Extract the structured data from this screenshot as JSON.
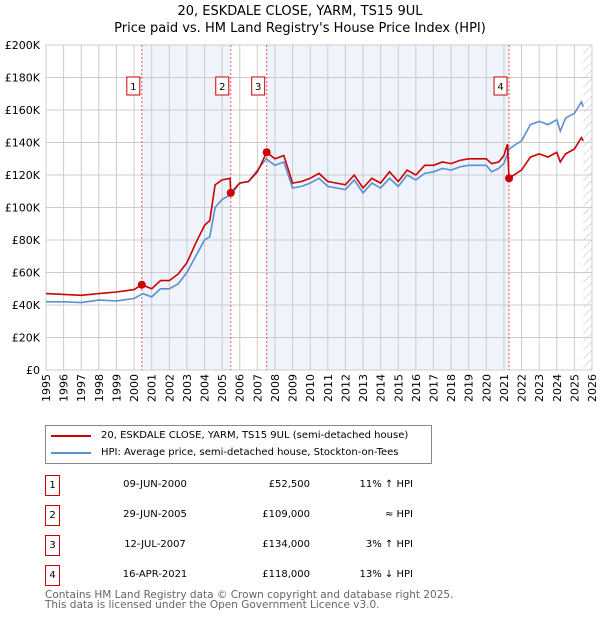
{
  "chart_data": {
    "type": "line",
    "title": "20, ESKDALE CLOSE, YARM, TS15 9UL",
    "subtitle": "Price paid vs. HM Land Registry's House Price Index (HPI)",
    "xlim": [
      1995,
      2026
    ],
    "ylim": [
      0,
      200000
    ],
    "x_ticks": [
      "1995",
      "1996",
      "1997",
      "1998",
      "1999",
      "2000",
      "2001",
      "2002",
      "2003",
      "2004",
      "2005",
      "2006",
      "2007",
      "2008",
      "2009",
      "2010",
      "2011",
      "2012",
      "2013",
      "2014",
      "2015",
      "2016",
      "2017",
      "2018",
      "2019",
      "2020",
      "2021",
      "2022",
      "2023",
      "2024",
      "2025",
      "2026"
    ],
    "y_ticks": [
      {
        "v": 0,
        "label": "£0"
      },
      {
        "v": 20000,
        "label": "£20K"
      },
      {
        "v": 40000,
        "label": "£40K"
      },
      {
        "v": 60000,
        "label": "£60K"
      },
      {
        "v": 80000,
        "label": "£80K"
      },
      {
        "v": 100000,
        "label": "£100K"
      },
      {
        "v": 120000,
        "label": "£120K"
      },
      {
        "v": 140000,
        "label": "£140K"
      },
      {
        "v": 160000,
        "label": "£160K"
      },
      {
        "v": 180000,
        "label": "£180K"
      },
      {
        "v": 200000,
        "label": "£200K"
      }
    ],
    "grid": true,
    "shaded_ranges": [
      [
        2000.44,
        2005.49
      ],
      [
        2007.53,
        2021.29
      ]
    ],
    "forecast_hatch_from": 2025.5,
    "series": [
      {
        "name": "20, ESKDALE CLOSE, YARM, TS15 9UL (semi-detached house)",
        "color": "#cc0000",
        "x": [
          1995,
          1996,
          1997,
          1998,
          1999,
          2000,
          2000.44,
          2001,
          2001.5,
          2002,
          2002.5,
          2003,
          2003.5,
          2004,
          2004.3,
          2004.6,
          2005,
          2005.45,
          2005.49,
          2006,
          2006.5,
          2007,
          2007.53,
          2008,
          2008.5,
          2009,
          2009.5,
          2010,
          2010.5,
          2011,
          2011.5,
          2012,
          2012.5,
          2013,
          2013.5,
          2014,
          2014.5,
          2015,
          2015.5,
          2016,
          2016.5,
          2017,
          2017.5,
          2018,
          2018.5,
          2019,
          2019.5,
          2020,
          2020.3,
          2020.7,
          2021,
          2021.2,
          2021.29,
          2021.7,
          2022,
          2022.5,
          2023,
          2023.5,
          2024,
          2024.2,
          2024.5,
          2025,
          2025.4,
          2025.5
        ],
        "y": [
          47000,
          46500,
          46000,
          47000,
          48000,
          49500,
          52500,
          50000,
          55000,
          55000,
          59000,
          66000,
          78000,
          89000,
          92000,
          114000,
          117000,
          118000,
          109000,
          115000,
          116000,
          122000,
          134000,
          130000,
          132000,
          115000,
          116000,
          118000,
          121000,
          116000,
          115000,
          114000,
          120000,
          112000,
          118000,
          115000,
          122000,
          116000,
          123000,
          120000,
          126000,
          126000,
          128000,
          127000,
          129000,
          130000,
          130000,
          130000,
          127000,
          128000,
          132000,
          139000,
          118000,
          121000,
          123000,
          131000,
          133000,
          131000,
          134000,
          128000,
          133000,
          136000,
          143000,
          141000
        ]
      },
      {
        "name": "HPI: Average price, semi-detached house, Stockton-on-Tees",
        "color": "#5b8fd0",
        "x": [
          1995,
          1996,
          1997,
          1998,
          1999,
          2000,
          2000.5,
          2001,
          2001.5,
          2002,
          2002.5,
          2003,
          2003.5,
          2004,
          2004.3,
          2004.6,
          2005,
          2005.5,
          2006,
          2006.5,
          2007,
          2007.5,
          2008,
          2008.5,
          2009,
          2009.5,
          2010,
          2010.5,
          2011,
          2011.5,
          2012,
          2012.5,
          2013,
          2013.5,
          2014,
          2014.5,
          2015,
          2015.5,
          2016,
          2016.5,
          2017,
          2017.5,
          2018,
          2018.5,
          2019,
          2019.5,
          2020,
          2020.3,
          2020.7,
          2021,
          2021.3,
          2021.7,
          2022,
          2022.5,
          2023,
          2023.5,
          2024,
          2024.2,
          2024.5,
          2025,
          2025.4,
          2025.5
        ],
        "y": [
          42000,
          42000,
          41500,
          43000,
          42500,
          44000,
          47000,
          45000,
          50000,
          50000,
          53000,
          60000,
          70000,
          80000,
          82000,
          100000,
          105000,
          108000,
          115000,
          116000,
          123000,
          130000,
          126000,
          128000,
          112000,
          113000,
          115000,
          118000,
          113000,
          112000,
          111000,
          117000,
          109000,
          115000,
          112000,
          118000,
          113000,
          120000,
          117000,
          121000,
          122000,
          124000,
          123000,
          125000,
          126000,
          126000,
          126000,
          122000,
          124000,
          127000,
          136000,
          139000,
          141000,
          151000,
          153000,
          151000,
          154000,
          147000,
          155000,
          158000,
          165000,
          162000
        ]
      }
    ],
    "sales": [
      {
        "n": "1",
        "x": 2000.44,
        "y": 52500
      },
      {
        "n": "2",
        "x": 2005.49,
        "y": 109000
      },
      {
        "n": "3",
        "x": 2007.53,
        "y": 134000
      },
      {
        "n": "4",
        "x": 2021.29,
        "y": 118000
      }
    ]
  },
  "legend": [
    "20, ESKDALE CLOSE, YARM, TS15 9UL (semi-detached house)",
    "HPI: Average price, semi-detached house, Stockton-on-Tees"
  ],
  "transactions": [
    {
      "n": "1",
      "date": "09-JUN-2000",
      "price": "£52,500",
      "hpi": "11% ↑ HPI"
    },
    {
      "n": "2",
      "date": "29-JUN-2005",
      "price": "£109,000",
      "hpi": "≈ HPI"
    },
    {
      "n": "3",
      "date": "12-JUL-2007",
      "price": "£134,000",
      "hpi": "3% ↑ HPI"
    },
    {
      "n": "4",
      "date": "16-APR-2021",
      "price": "£118,000",
      "hpi": "13% ↓ HPI"
    }
  ],
  "footer": [
    "Contains HM Land Registry data © Crown copyright and database right 2025.",
    "This data is licensed under the Open Government Licence v3.0."
  ]
}
